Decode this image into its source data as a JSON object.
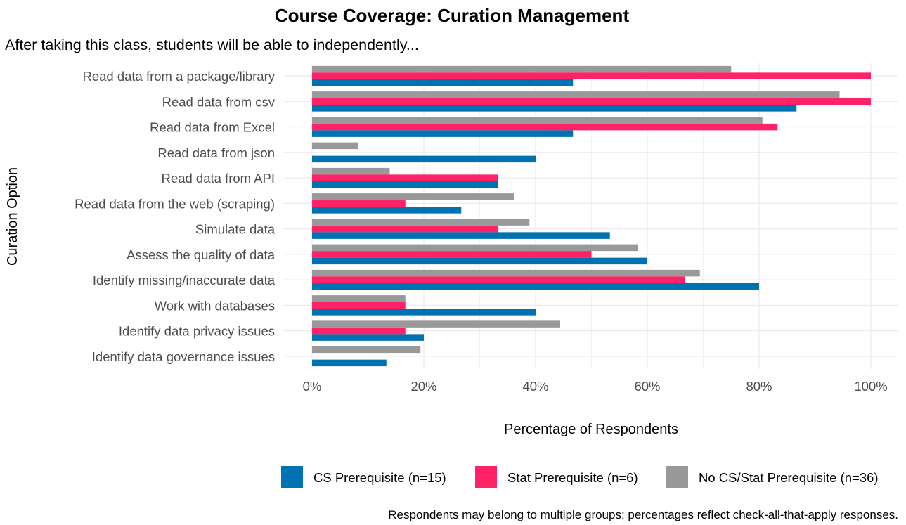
{
  "chart_data": {
    "type": "bar",
    "orientation": "horizontal",
    "title": "Course Coverage: Curation Management",
    "subtitle": "After taking this class, students will be able to independently...",
    "xlabel": "Percentage of Respondents",
    "ylabel": "Curation Option",
    "caption": "Respondents may belong to multiple groups; percentages reflect check-all-that-apply responses.",
    "xlim": [
      0,
      1.05
    ],
    "x_ticks": [
      0,
      0.2,
      0.4,
      0.6,
      0.8,
      1.0
    ],
    "x_tick_labels": [
      "0%",
      "20%",
      "40%",
      "60%",
      "80%",
      "100%"
    ],
    "grid": true,
    "legend_position": "bottom",
    "categories": [
      "Read data from a package/library",
      "Read data from csv",
      "Read data from Excel",
      "Read data from json",
      "Read data from API",
      "Read data from the web (scraping)",
      "Simulate data",
      "Assess the quality of data",
      "Identify missing/inaccurate data",
      "Work with databases",
      "Identify data privacy issues",
      "Identify data governance issues"
    ],
    "series": [
      {
        "name": "CS Prerequisite (n=15)",
        "color": "#0072B2",
        "values": [
          0.467,
          0.867,
          0.467,
          0.4,
          0.333,
          0.267,
          0.533,
          0.6,
          0.8,
          0.4,
          0.2,
          0.133
        ]
      },
      {
        "name": "Stat Prerequisite (n=6)",
        "color": "#FF2266",
        "values": [
          1.0,
          1.0,
          0.833,
          0,
          0.333,
          0.167,
          0.333,
          0.5,
          0.667,
          0.167,
          0.167,
          0
        ]
      },
      {
        "name": "No CS/Stat Prerequisite (n=36)",
        "color": "#999999",
        "values": [
          0.75,
          0.944,
          0.806,
          0.083,
          0.139,
          0.361,
          0.389,
          0.583,
          0.694,
          0.167,
          0.444,
          0.194
        ]
      }
    ]
  }
}
